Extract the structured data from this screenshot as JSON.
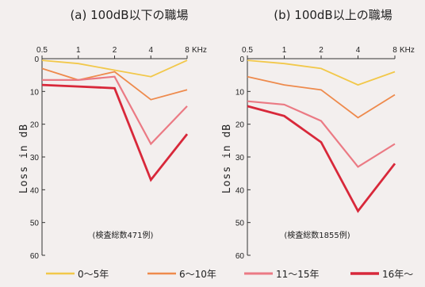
{
  "colors": [
    "#f2c84a",
    "#ee8a4c",
    "#eb7a84",
    "#d8283a"
  ],
  "legend": {
    "items": [
      "0～5年",
      "6～10年",
      "11～15年",
      "16年～"
    ]
  },
  "chart_data": [
    {
      "type": "line",
      "title": "(a) 100dB以下の職場",
      "note": "(検査総数471例)",
      "ylabel": "Loss in dB",
      "x": [
        0.5,
        1,
        2,
        4,
        8
      ],
      "x_tick_labels": [
        "0.5",
        "1",
        "2",
        "4",
        "8"
      ],
      "x_unit": "KHz",
      "y_ticks": [
        "0",
        "10",
        "20",
        "30",
        "40",
        "50",
        "60"
      ],
      "ylim": [
        0,
        60
      ],
      "y_inverted": true,
      "series": [
        {
          "name": "0～5年",
          "values": [
            0.5,
            1.5,
            3.5,
            5.5,
            0.5
          ]
        },
        {
          "name": "6～10年",
          "values": [
            3,
            6.5,
            4,
            12.5,
            9.5
          ]
        },
        {
          "name": "11～15年",
          "values": [
            6.5,
            6.5,
            5.5,
            26,
            14.5
          ]
        },
        {
          "name": "16年～",
          "values": [
            8,
            8.5,
            9,
            37,
            23
          ]
        }
      ]
    },
    {
      "type": "line",
      "title": "(b) 100dB以上の職場",
      "note": "(検査総数1855例)",
      "ylabel": "Loss in dB",
      "x": [
        0.5,
        1,
        2,
        4,
        8
      ],
      "x_tick_labels": [
        "0.5",
        "1",
        "2",
        "4",
        "8"
      ],
      "x_unit": "KHz",
      "y_ticks": [
        "0",
        "10",
        "20",
        "30",
        "40",
        "50",
        "60"
      ],
      "ylim": [
        0,
        60
      ],
      "y_inverted": true,
      "series": [
        {
          "name": "0～5年",
          "values": [
            0.5,
            1.5,
            3,
            8,
            4
          ]
        },
        {
          "name": "6～10年",
          "values": [
            5.5,
            8,
            9.5,
            18,
            11
          ]
        },
        {
          "name": "11～15年",
          "values": [
            13,
            14,
            19,
            33,
            26
          ]
        },
        {
          "name": "16年～",
          "values": [
            14.5,
            17.5,
            25.5,
            46.5,
            32
          ]
        }
      ]
    }
  ]
}
